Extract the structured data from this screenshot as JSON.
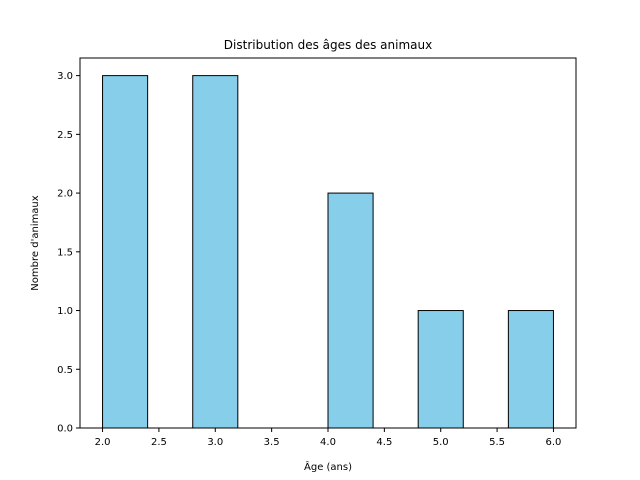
{
  "chart_data": {
    "type": "bar",
    "title": "Distribution des âges des animaux",
    "xlabel": "Âge (ans)",
    "ylabel": "Nombre d'animaux",
    "bins": [
      {
        "start": 2.0,
        "end": 2.4,
        "count": 3
      },
      {
        "start": 2.4,
        "end": 2.8,
        "count": 0
      },
      {
        "start": 2.8,
        "end": 3.2,
        "count": 3
      },
      {
        "start": 3.2,
        "end": 3.6,
        "count": 0
      },
      {
        "start": 3.6,
        "end": 4.0,
        "count": 0
      },
      {
        "start": 4.0,
        "end": 4.4,
        "count": 2
      },
      {
        "start": 4.4,
        "end": 4.8,
        "count": 0
      },
      {
        "start": 4.8,
        "end": 5.2,
        "count": 1
      },
      {
        "start": 5.2,
        "end": 5.6,
        "count": 0
      },
      {
        "start": 5.6,
        "end": 6.0,
        "count": 1
      }
    ],
    "xlim": [
      1.8,
      6.2
    ],
    "ylim": [
      0,
      3.15
    ],
    "xticks": [
      "2.0",
      "2.5",
      "3.0",
      "3.5",
      "4.0",
      "4.5",
      "5.0",
      "5.5",
      "6.0"
    ],
    "yticks": [
      "0.0",
      "0.5",
      "1.0",
      "1.5",
      "2.0",
      "2.5",
      "3.0"
    ],
    "grid": false,
    "bar_color": "#87CEEB",
    "edge_color": "#000000"
  }
}
